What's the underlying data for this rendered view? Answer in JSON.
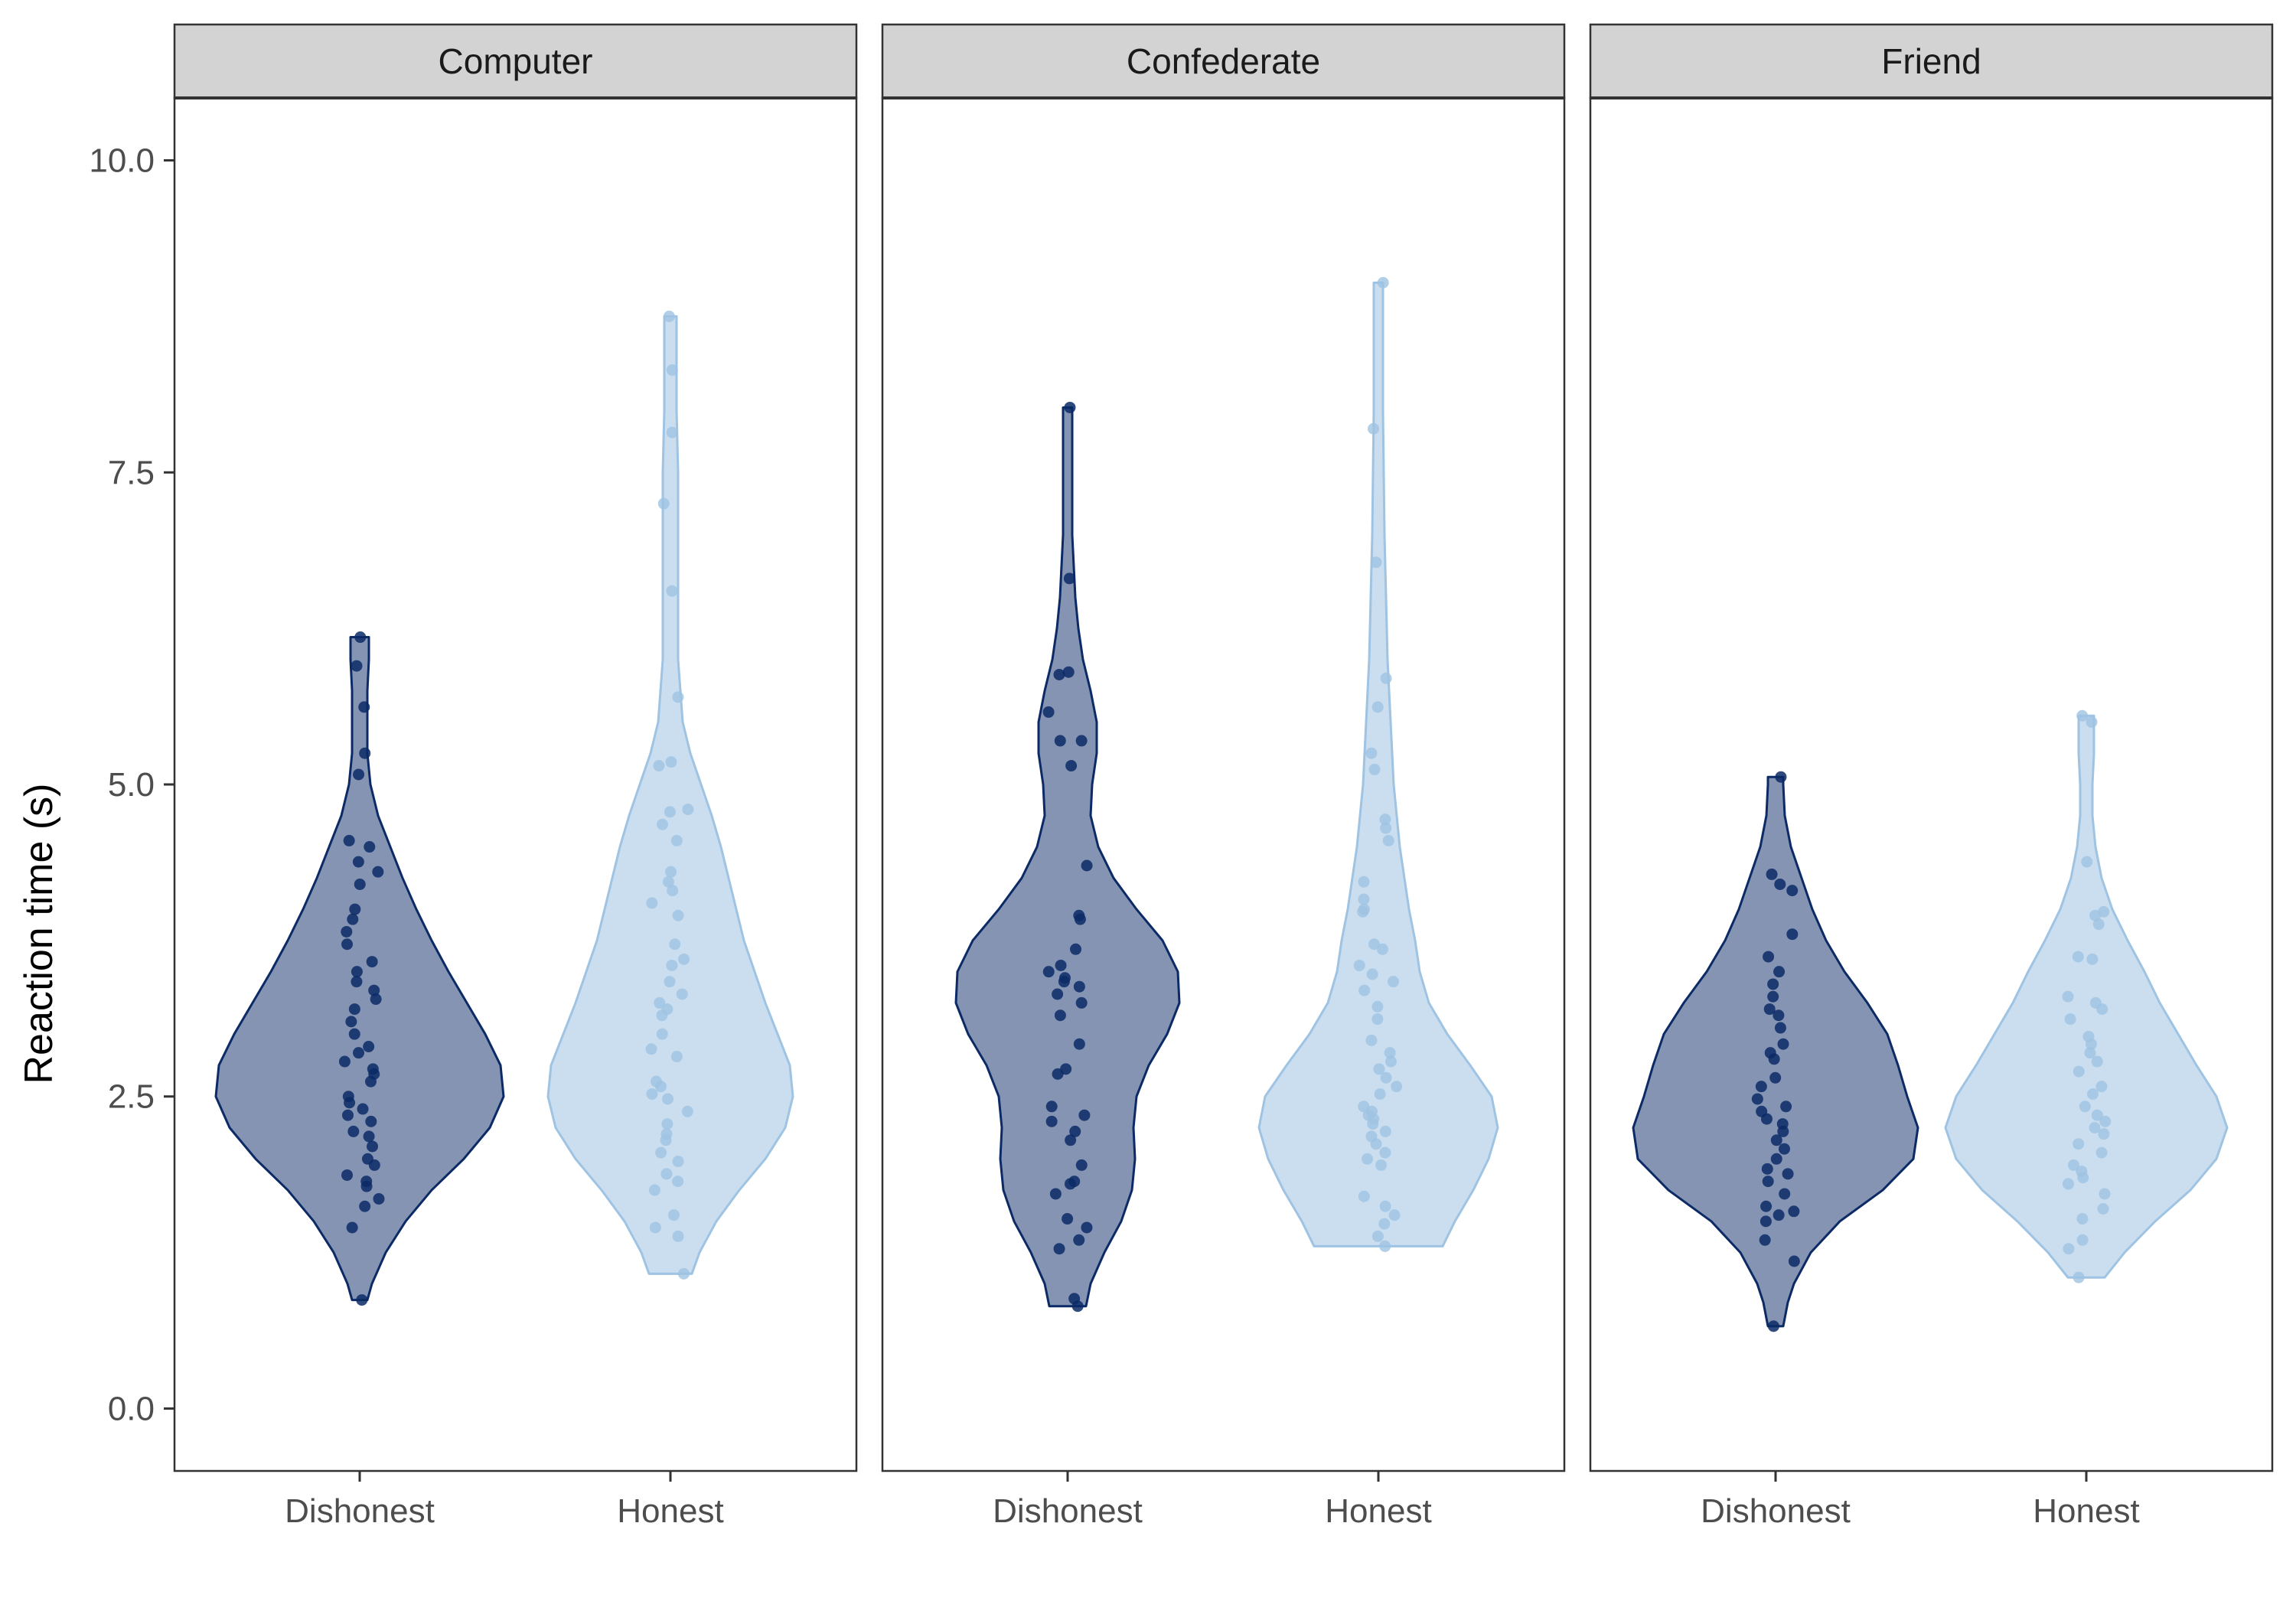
{
  "chart_data": {
    "type": "violin",
    "ylabel": "Reaction time (s)",
    "xlabel": "",
    "ylim": [
      -0.5,
      10.5
    ],
    "yticks": [
      0,
      2.5,
      5,
      7.5,
      10
    ],
    "ytick_labels": [
      "0.0",
      "2.5",
      "5.0",
      "7.5",
      "10.0"
    ],
    "categories": [
      "Dishonest",
      "Honest"
    ],
    "colors": {
      "Dishonest": "#0b2a66",
      "Honest": "#9fc3e2"
    },
    "grid": false,
    "legend": "none",
    "panels": [
      {
        "label": "Computer",
        "groups": [
          {
            "category": "Dishonest",
            "range": [
              0.87,
              6.18
            ],
            "density": [
              [
                0.87,
                0.05
              ],
              [
                1.0,
                0.08
              ],
              [
                1.25,
                0.17
              ],
              [
                1.5,
                0.3
              ],
              [
                1.75,
                0.47
              ],
              [
                2.0,
                0.68
              ],
              [
                2.25,
                0.85
              ],
              [
                2.5,
                0.94
              ],
              [
                2.75,
                0.92
              ],
              [
                3.0,
                0.82
              ],
              [
                3.25,
                0.7
              ],
              [
                3.5,
                0.58
              ],
              [
                3.75,
                0.47
              ],
              [
                4.0,
                0.37
              ],
              [
                4.25,
                0.28
              ],
              [
                4.5,
                0.2
              ],
              [
                4.75,
                0.12
              ],
              [
                5.0,
                0.07
              ],
              [
                5.25,
                0.05
              ],
              [
                5.5,
                0.05
              ],
              [
                5.75,
                0.05
              ],
              [
                6.0,
                0.06
              ],
              [
                6.18,
                0.06
              ]
            ],
            "points": [
              0.87,
              1.45,
              1.62,
              1.68,
              1.78,
              1.82,
              1.87,
              1.95,
              2.0,
              2.1,
              2.18,
              2.22,
              2.3,
              2.35,
              2.4,
              2.45,
              2.5,
              2.62,
              2.68,
              2.72,
              2.78,
              2.85,
              2.9,
              3.0,
              3.1,
              3.2,
              3.28,
              3.35,
              3.42,
              3.5,
              3.58,
              3.72,
              3.82,
              3.92,
              4.0,
              4.2,
              4.3,
              4.38,
              4.5,
              4.55,
              5.08,
              5.25,
              5.62,
              5.95,
              6.18
            ]
          },
          {
            "category": "Honest",
            "range": [
              1.08,
              8.75
            ],
            "density": [
              [
                1.08,
                0.14
              ],
              [
                1.25,
                0.19
              ],
              [
                1.5,
                0.3
              ],
              [
                1.75,
                0.45
              ],
              [
                2.0,
                0.62
              ],
              [
                2.25,
                0.75
              ],
              [
                2.5,
                0.8
              ],
              [
                2.75,
                0.78
              ],
              [
                3.0,
                0.7
              ],
              [
                3.25,
                0.62
              ],
              [
                3.5,
                0.55
              ],
              [
                3.75,
                0.48
              ],
              [
                4.0,
                0.43
              ],
              [
                4.25,
                0.38
              ],
              [
                4.5,
                0.33
              ],
              [
                4.75,
                0.27
              ],
              [
                5.0,
                0.2
              ],
              [
                5.25,
                0.13
              ],
              [
                5.5,
                0.08
              ],
              [
                6.0,
                0.05
              ],
              [
                6.5,
                0.05
              ],
              [
                7.0,
                0.05
              ],
              [
                7.5,
                0.05
              ],
              [
                8.0,
                0.04
              ],
              [
                8.5,
                0.04
              ],
              [
                8.75,
                0.04
              ]
            ],
            "points": [
              1.08,
              1.38,
              1.45,
              1.55,
              1.75,
              1.82,
              1.88,
              1.98,
              2.05,
              2.15,
              2.2,
              2.28,
              2.38,
              2.48,
              2.52,
              2.58,
              2.62,
              2.82,
              2.88,
              3.0,
              3.15,
              3.2,
              3.25,
              3.32,
              3.42,
              3.55,
              3.6,
              3.72,
              3.95,
              4.05,
              4.15,
              4.22,
              4.3,
              4.55,
              4.68,
              4.78,
              4.8,
              5.15,
              5.18,
              5.7,
              6.55,
              7.25,
              7.82,
              8.32,
              8.75
            ]
          }
        ]
      },
      {
        "label": "Confederate",
        "groups": [
          {
            "category": "Dishonest",
            "range": [
              0.82,
              8.02
            ],
            "density": [
              [
                0.82,
                0.12
              ],
              [
                1.0,
                0.15
              ],
              [
                1.25,
                0.24
              ],
              [
                1.5,
                0.35
              ],
              [
                1.75,
                0.42
              ],
              [
                2.0,
                0.44
              ],
              [
                2.25,
                0.43
              ],
              [
                2.5,
                0.45
              ],
              [
                2.75,
                0.53
              ],
              [
                3.0,
                0.65
              ],
              [
                3.25,
                0.73
              ],
              [
                3.5,
                0.72
              ],
              [
                3.75,
                0.62
              ],
              [
                4.0,
                0.45
              ],
              [
                4.25,
                0.3
              ],
              [
                4.5,
                0.2
              ],
              [
                4.75,
                0.15
              ],
              [
                5.0,
                0.16
              ],
              [
                5.25,
                0.19
              ],
              [
                5.5,
                0.19
              ],
              [
                5.75,
                0.15
              ],
              [
                6.0,
                0.1
              ],
              [
                6.25,
                0.07
              ],
              [
                6.5,
                0.05
              ],
              [
                7.0,
                0.03
              ],
              [
                7.5,
                0.03
              ],
              [
                8.02,
                0.03
              ]
            ],
            "points": [
              0.82,
              0.88,
              1.28,
              1.35,
              1.45,
              1.52,
              1.72,
              1.8,
              1.82,
              1.95,
              2.15,
              2.22,
              2.3,
              2.35,
              2.42,
              2.68,
              2.72,
              2.92,
              3.15,
              3.25,
              3.32,
              3.38,
              3.42,
              3.45,
              3.5,
              3.55,
              3.68,
              3.92,
              3.95,
              4.35,
              5.15,
              5.35,
              5.35,
              5.58,
              5.88,
              5.9,
              6.65,
              8.02
            ]
          },
          {
            "category": "Honest",
            "range": [
              1.3,
              9.02
            ],
            "density": [
              [
                1.3,
                0.42
              ],
              [
                1.5,
                0.5
              ],
              [
                1.75,
                0.62
              ],
              [
                2.0,
                0.72
              ],
              [
                2.25,
                0.78
              ],
              [
                2.5,
                0.74
              ],
              [
                2.75,
                0.6
              ],
              [
                3.0,
                0.45
              ],
              [
                3.25,
                0.33
              ],
              [
                3.5,
                0.27
              ],
              [
                3.75,
                0.24
              ],
              [
                4.0,
                0.2
              ],
              [
                4.25,
                0.17
              ],
              [
                4.5,
                0.14
              ],
              [
                4.75,
                0.12
              ],
              [
                5.0,
                0.1
              ],
              [
                5.5,
                0.08
              ],
              [
                6.0,
                0.06
              ],
              [
                6.5,
                0.05
              ],
              [
                7.0,
                0.04
              ],
              [
                8.0,
                0.03
              ],
              [
                9.02,
                0.03
              ]
            ],
            "points": [
              1.3,
              1.38,
              1.48,
              1.55,
              1.62,
              1.7,
              1.95,
              2.0,
              2.05,
              2.12,
              2.18,
              2.22,
              2.28,
              2.32,
              2.35,
              2.38,
              2.42,
              2.52,
              2.58,
              2.65,
              2.72,
              2.78,
              2.85,
              2.95,
              3.12,
              3.22,
              3.35,
              3.42,
              3.48,
              3.55,
              3.68,
              3.72,
              3.98,
              4.0,
              4.08,
              4.22,
              4.55,
              4.65,
              4.72,
              5.12,
              5.25,
              5.62,
              5.85,
              6.78,
              7.85,
              9.02
            ]
          }
        ]
      },
      {
        "label": "Friend",
        "groups": [
          {
            "category": "Dishonest",
            "range": [
              0.66,
              5.06
            ],
            "density": [
              [
                0.66,
                0.05
              ],
              [
                0.85,
                0.08
              ],
              [
                1.0,
                0.12
              ],
              [
                1.25,
                0.23
              ],
              [
                1.5,
                0.42
              ],
              [
                1.75,
                0.7
              ],
              [
                2.0,
                0.9
              ],
              [
                2.25,
                0.93
              ],
              [
                2.5,
                0.86
              ],
              [
                2.75,
                0.8
              ],
              [
                3.0,
                0.73
              ],
              [
                3.25,
                0.6
              ],
              [
                3.5,
                0.45
              ],
              [
                3.75,
                0.33
              ],
              [
                4.0,
                0.24
              ],
              [
                4.25,
                0.17
              ],
              [
                4.5,
                0.1
              ],
              [
                4.75,
                0.06
              ],
              [
                5.0,
                0.05
              ],
              [
                5.06,
                0.05
              ]
            ],
            "points": [
              0.66,
              1.18,
              1.35,
              1.5,
              1.55,
              1.58,
              1.62,
              1.72,
              1.82,
              1.88,
              1.92,
              2.0,
              2.08,
              2.15,
              2.22,
              2.28,
              2.32,
              2.38,
              2.42,
              2.48,
              2.58,
              2.65,
              2.8,
              2.85,
              2.92,
              3.05,
              3.15,
              3.2,
              3.3,
              3.4,
              3.5,
              3.62,
              3.8,
              4.15,
              4.2,
              4.28,
              5.06
            ]
          },
          {
            "category": "Honest",
            "range": [
              1.05,
              5.55
            ],
            "density": [
              [
                1.05,
                0.12
              ],
              [
                1.25,
                0.25
              ],
              [
                1.5,
                0.45
              ],
              [
                1.75,
                0.68
              ],
              [
                2.0,
                0.85
              ],
              [
                2.25,
                0.92
              ],
              [
                2.5,
                0.85
              ],
              [
                2.75,
                0.72
              ],
              [
                3.0,
                0.6
              ],
              [
                3.25,
                0.48
              ],
              [
                3.5,
                0.38
              ],
              [
                3.75,
                0.27
              ],
              [
                4.0,
                0.17
              ],
              [
                4.25,
                0.1
              ],
              [
                4.5,
                0.06
              ],
              [
                4.75,
                0.04
              ],
              [
                5.0,
                0.04
              ],
              [
                5.25,
                0.05
              ],
              [
                5.55,
                0.05
              ]
            ],
            "points": [
              1.05,
              1.28,
              1.35,
              1.52,
              1.6,
              1.72,
              1.8,
              1.85,
              1.9,
              1.95,
              2.05,
              2.12,
              2.2,
              2.25,
              2.3,
              2.35,
              2.42,
              2.52,
              2.58,
              2.7,
              2.78,
              2.85,
              2.92,
              2.98,
              3.12,
              3.2,
              3.25,
              3.3,
              3.6,
              3.62,
              3.88,
              3.95,
              3.98,
              4.38,
              5.5,
              5.55
            ]
          }
        ]
      }
    ]
  }
}
